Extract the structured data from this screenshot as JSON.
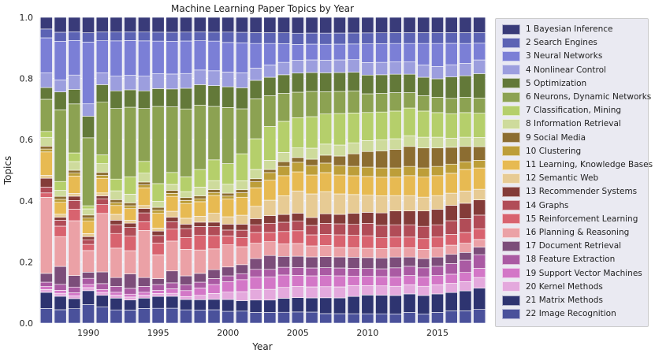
{
  "chart_data": {
    "type": "bar",
    "stacked": true,
    "title": "Machine Learning Paper Topics by Year",
    "xlabel": "Year",
    "ylabel": "Topics",
    "ylim": [
      0,
      1.0
    ],
    "yticks": [
      "0.0",
      "0.2",
      "0.4",
      "0.6",
      "0.8",
      "1.0"
    ],
    "ytick_values": [
      0,
      0.2,
      0.4,
      0.6,
      0.8,
      1.0
    ],
    "xticks": [
      "1990",
      "1995",
      "2000",
      "2005",
      "2010",
      "2015"
    ],
    "xtick_values": [
      1990,
      1995,
      2000,
      2005,
      2010,
      2015
    ],
    "grid": true,
    "legend_position": "right",
    "categories": [
      1987,
      1988,
      1989,
      1990,
      1991,
      1992,
      1993,
      1994,
      1995,
      1996,
      1997,
      1998,
      1999,
      2000,
      2001,
      2002,
      2003,
      2004,
      2005,
      2006,
      2007,
      2008,
      2009,
      2010,
      2011,
      2012,
      2013,
      2014,
      2015,
      2016,
      2017,
      2018
    ],
    "series": [
      {
        "name": "22 Image Recognition",
        "color": "#4a519b",
        "values": [
          0.05,
          0.045,
          0.05,
          0.06,
          0.055,
          0.045,
          0.045,
          0.05,
          0.05,
          0.05,
          0.045,
          0.045,
          0.045,
          0.04,
          0.04,
          0.035,
          0.035,
          0.035,
          0.035,
          0.035,
          0.03,
          0.03,
          0.03,
          0.03,
          0.03,
          0.03,
          0.035,
          0.03,
          0.035,
          0.04,
          0.04,
          0.045
        ]
      },
      {
        "name": "21 Matrix Methods",
        "color": "#2e3470",
        "values": [
          0.055,
          0.045,
          0.035,
          0.045,
          0.04,
          0.04,
          0.035,
          0.035,
          0.04,
          0.04,
          0.035,
          0.035,
          0.035,
          0.04,
          0.035,
          0.04,
          0.04,
          0.045,
          0.045,
          0.045,
          0.05,
          0.05,
          0.055,
          0.06,
          0.06,
          0.06,
          0.06,
          0.06,
          0.06,
          0.06,
          0.065,
          0.07
        ]
      },
      {
        "name": "20 Kernel Methods",
        "color": "#e4a9dd",
        "values": [
          0.01,
          0.01,
          0.01,
          0.01,
          0.01,
          0.01,
          0.01,
          0.01,
          0.01,
          0.01,
          0.01,
          0.015,
          0.02,
          0.025,
          0.03,
          0.035,
          0.035,
          0.035,
          0.035,
          0.035,
          0.035,
          0.035,
          0.035,
          0.03,
          0.03,
          0.03,
          0.03,
          0.03,
          0.03,
          0.03,
          0.03,
          0.035
        ]
      },
      {
        "name": "19 Support Vector Machines",
        "color": "#d377c7",
        "values": [
          0.01,
          0.01,
          0.01,
          0.01,
          0.01,
          0.01,
          0.01,
          0.01,
          0.01,
          0.015,
          0.02,
          0.025,
          0.03,
          0.035,
          0.04,
          0.04,
          0.04,
          0.04,
          0.035,
          0.035,
          0.035,
          0.035,
          0.03,
          0.03,
          0.03,
          0.03,
          0.03,
          0.03,
          0.03,
          0.03,
          0.03,
          0.03
        ]
      },
      {
        "name": "18 Feature Extraction",
        "color": "#aa5aa3",
        "values": [
          0.015,
          0.02,
          0.02,
          0.02,
          0.02,
          0.02,
          0.02,
          0.02,
          0.02,
          0.02,
          0.02,
          0.02,
          0.02,
          0.02,
          0.02,
          0.025,
          0.025,
          0.025,
          0.025,
          0.025,
          0.025,
          0.025,
          0.025,
          0.025,
          0.025,
          0.03,
          0.03,
          0.03,
          0.03,
          0.035,
          0.04,
          0.045
        ]
      },
      {
        "name": "17 Document Retrieval",
        "color": "#7c4d7a",
        "values": [
          0.03,
          0.06,
          0.04,
          0.02,
          0.04,
          0.03,
          0.05,
          0.03,
          0.02,
          0.04,
          0.03,
          0.03,
          0.03,
          0.03,
          0.03,
          0.035,
          0.045,
          0.035,
          0.035,
          0.035,
          0.035,
          0.035,
          0.035,
          0.035,
          0.035,
          0.035,
          0.03,
          0.03,
          0.03,
          0.03,
          0.025,
          0.025
        ]
      },
      {
        "name": "16 Planning & Reasoning",
        "color": "#eba1a6",
        "values": [
          0.26,
          0.1,
          0.19,
          0.07,
          0.2,
          0.1,
          0.08,
          0.16,
          0.08,
          0.1,
          0.09,
          0.08,
          0.07,
          0.075,
          0.06,
          0.05,
          0.045,
          0.04,
          0.04,
          0.035,
          0.035,
          0.03,
          0.03,
          0.03,
          0.03,
          0.03,
          0.03,
          0.03,
          0.03,
          0.03,
          0.03,
          0.025
        ]
      },
      {
        "name": "15 Reinforcement Learning",
        "color": "#d8636f",
        "values": [
          0.015,
          0.035,
          0.04,
          0.02,
          0.03,
          0.05,
          0.05,
          0.03,
          0.04,
          0.04,
          0.04,
          0.05,
          0.045,
          0.03,
          0.03,
          0.035,
          0.03,
          0.04,
          0.04,
          0.035,
          0.035,
          0.04,
          0.04,
          0.04,
          0.035,
          0.035,
          0.035,
          0.035,
          0.035,
          0.035,
          0.035,
          0.035
        ]
      },
      {
        "name": "14 Graphs",
        "color": "#b14c57",
        "values": [
          0.02,
          0.02,
          0.03,
          0.015,
          0.02,
          0.03,
          0.03,
          0.03,
          0.025,
          0.025,
          0.03,
          0.03,
          0.03,
          0.02,
          0.025,
          0.025,
          0.03,
          0.03,
          0.03,
          0.03,
          0.035,
          0.035,
          0.035,
          0.04,
          0.04,
          0.04,
          0.04,
          0.04,
          0.04,
          0.045,
          0.045,
          0.045
        ]
      },
      {
        "name": "13 Recommender Systems",
        "color": "#843c39",
        "values": [
          0.03,
          0.01,
          0.015,
          0.01,
          0.01,
          0.015,
          0.015,
          0.015,
          0.015,
          0.015,
          0.015,
          0.015,
          0.015,
          0.02,
          0.02,
          0.02,
          0.025,
          0.025,
          0.025,
          0.025,
          0.03,
          0.03,
          0.035,
          0.035,
          0.04,
          0.045,
          0.045,
          0.05,
          0.05,
          0.05,
          0.05,
          0.05
        ]
      },
      {
        "name": "12 Semantic Web",
        "color": "#e7cb94",
        "values": [
          0.01,
          0.01,
          0.01,
          0.01,
          0.01,
          0.02,
          0.01,
          0.01,
          0.01,
          0.02,
          0.02,
          0.02,
          0.03,
          0.025,
          0.03,
          0.04,
          0.05,
          0.06,
          0.07,
          0.075,
          0.07,
          0.065,
          0.06,
          0.055,
          0.055,
          0.05,
          0.05,
          0.045,
          0.045,
          0.04,
          0.04,
          0.035
        ]
      },
      {
        "name": "11 Learning, Knowledge Bases",
        "color": "#e7ba52",
        "values": [
          0.08,
          0.04,
          0.06,
          0.04,
          0.05,
          0.03,
          0.04,
          0.06,
          0.05,
          0.05,
          0.05,
          0.05,
          0.06,
          0.06,
          0.06,
          0.06,
          0.065,
          0.065,
          0.06,
          0.06,
          0.06,
          0.06,
          0.06,
          0.06,
          0.06,
          0.06,
          0.065,
          0.065,
          0.065,
          0.065,
          0.07,
          0.07
        ]
      },
      {
        "name": "10 Clustering",
        "color": "#bd9e39",
        "values": [
          0.01,
          0.01,
          0.01,
          0.01,
          0.01,
          0.01,
          0.01,
          0.01,
          0.01,
          0.01,
          0.01,
          0.01,
          0.01,
          0.01,
          0.015,
          0.02,
          0.025,
          0.03,
          0.03,
          0.03,
          0.03,
          0.03,
          0.03,
          0.03,
          0.03,
          0.03,
          0.03,
          0.03,
          0.03,
          0.03,
          0.025,
          0.025
        ]
      },
      {
        "name": "9 Social Media",
        "color": "#8c6d31",
        "values": [
          0.01,
          0.01,
          0.01,
          0.01,
          0.01,
          0.01,
          0.01,
          0.01,
          0.01,
          0.01,
          0.01,
          0.01,
          0.01,
          0.01,
          0.01,
          0.01,
          0.01,
          0.015,
          0.015,
          0.02,
          0.025,
          0.03,
          0.04,
          0.05,
          0.055,
          0.06,
          0.065,
          0.065,
          0.06,
          0.055,
          0.05,
          0.045
        ]
      },
      {
        "name": "8 Information Retrieval",
        "color": "#cedb9c",
        "values": [
          0.03,
          0.02,
          0.03,
          0.02,
          0.03,
          0.03,
          0.03,
          0.03,
          0.02,
          0.02,
          0.02,
          0.03,
          0.03,
          0.03,
          0.03,
          0.03,
          0.03,
          0.03,
          0.03,
          0.035,
          0.035,
          0.035,
          0.035,
          0.035,
          0.035,
          0.035,
          0.035,
          0.035,
          0.035,
          0.03,
          0.03,
          0.03
        ]
      },
      {
        "name": "7 Classification, Mining",
        "color": "#b5cf6b",
        "values": [
          0.02,
          0.03,
          0.03,
          0.01,
          0.03,
          0.04,
          0.06,
          0.04,
          0.06,
          0.04,
          0.05,
          0.06,
          0.07,
          0.07,
          0.09,
          0.1,
          0.11,
          0.1,
          0.095,
          0.1,
          0.095,
          0.1,
          0.095,
          0.09,
          0.09,
          0.09,
          0.09,
          0.085,
          0.08,
          0.08,
          0.08,
          0.08
        ]
      },
      {
        "name": "6 Neurons, Dynamic Networks",
        "color": "#8ca252",
        "values": [
          0.11,
          0.24,
          0.17,
          0.22,
          0.18,
          0.24,
          0.24,
          0.18,
          0.26,
          0.22,
          0.23,
          0.22,
          0.18,
          0.19,
          0.15,
          0.13,
          0.1,
          0.09,
          0.08,
          0.08,
          0.07,
          0.07,
          0.07,
          0.06,
          0.06,
          0.06,
          0.05,
          0.05,
          0.05,
          0.05,
          0.05,
          0.05
        ]
      },
      {
        "name": "5 Optimization",
        "color": "#637939",
        "values": [
          0.04,
          0.06,
          0.05,
          0.07,
          0.06,
          0.06,
          0.06,
          0.06,
          0.06,
          0.06,
          0.07,
          0.07,
          0.07,
          0.07,
          0.07,
          0.06,
          0.06,
          0.06,
          0.06,
          0.06,
          0.06,
          0.06,
          0.06,
          0.06,
          0.06,
          0.06,
          0.06,
          0.06,
          0.06,
          0.07,
          0.07,
          0.08
        ]
      },
      {
        "name": "4 Nonlinear Control",
        "color": "#9c9ede",
        "values": [
          0.05,
          0.04,
          0.05,
          0.04,
          0.04,
          0.05,
          0.05,
          0.05,
          0.05,
          0.05,
          0.05,
          0.05,
          0.05,
          0.05,
          0.05,
          0.04,
          0.04,
          0.04,
          0.04,
          0.04,
          0.04,
          0.04,
          0.04,
          0.04,
          0.04,
          0.04,
          0.04,
          0.04,
          0.04,
          0.04,
          0.04,
          0.045
        ]
      },
      {
        "name": "3 Neural Networks",
        "color": "#7b7fd6",
        "values": [
          0.12,
          0.13,
          0.12,
          0.2,
          0.11,
          0.12,
          0.12,
          0.12,
          0.11,
          0.11,
          0.11,
          0.1,
          0.1,
          0.1,
          0.1,
          0.08,
          0.07,
          0.06,
          0.05,
          0.05,
          0.05,
          0.05,
          0.05,
          0.06,
          0.06,
          0.06,
          0.06,
          0.07,
          0.075,
          0.07,
          0.065,
          0.055
        ]
      },
      {
        "name": "2 Search Engines",
        "color": "#5c63b4",
        "values": [
          0.03,
          0.03,
          0.03,
          0.03,
          0.03,
          0.03,
          0.03,
          0.03,
          0.03,
          0.03,
          0.03,
          0.03,
          0.03,
          0.035,
          0.035,
          0.035,
          0.035,
          0.035,
          0.035,
          0.035,
          0.035,
          0.035,
          0.035,
          0.035,
          0.035,
          0.035,
          0.035,
          0.035,
          0.035,
          0.035,
          0.035,
          0.035
        ]
      },
      {
        "name": "1 Bayesian Inference",
        "color": "#393b79",
        "values": [
          0.04,
          0.05,
          0.05,
          0.05,
          0.05,
          0.05,
          0.05,
          0.05,
          0.05,
          0.05,
          0.05,
          0.05,
          0.05,
          0.05,
          0.05,
          0.05,
          0.05,
          0.05,
          0.05,
          0.05,
          0.05,
          0.05,
          0.05,
          0.05,
          0.05,
          0.05,
          0.05,
          0.05,
          0.05,
          0.05,
          0.05,
          0.05
        ]
      }
    ],
    "legend": [
      "1 Bayesian Inference",
      "2 Search Engines",
      "3 Neural Networks",
      "4 Nonlinear Control",
      "5 Optimization",
      "6 Neurons, Dynamic Networks",
      "7 Classification, Mining",
      "8 Information Retrieval",
      "9 Social Media",
      "10 Clustering",
      "11 Learning, Knowledge Bases",
      "12 Semantic Web",
      "13 Recommender Systems",
      "14 Graphs",
      "15 Reinforcement Learning",
      "16 Planning & Reasoning",
      "17 Document Retrieval",
      "18 Feature Extraction",
      "19 Support Vector Machines",
      "20 Kernel Methods",
      "21 Matrix Methods",
      "22 Image Recognition"
    ],
    "legend_colors": [
      "#393b79",
      "#5c63b4",
      "#7b7fd6",
      "#9c9ede",
      "#637939",
      "#8ca252",
      "#b5cf6b",
      "#cedb9c",
      "#8c6d31",
      "#bd9e39",
      "#e7ba52",
      "#e7cb94",
      "#843c39",
      "#b14c57",
      "#d8636f",
      "#eba1a6",
      "#7c4d7a",
      "#aa5aa3",
      "#d377c7",
      "#e4a9dd",
      "#2e3470",
      "#4a519b"
    ]
  }
}
